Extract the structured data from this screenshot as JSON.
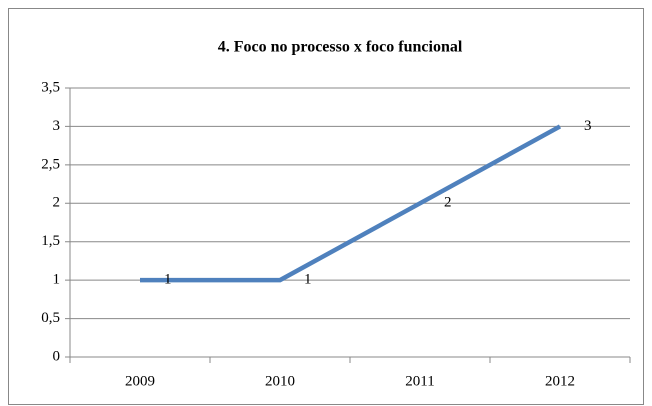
{
  "chart_data": {
    "type": "line",
    "title": "4. Foco no processo x foco funcional",
    "categories": [
      "2009",
      "2010",
      "2011",
      "2012"
    ],
    "values": [
      1,
      1,
      2,
      3
    ],
    "color": "#4f81bd",
    "ylim": [
      0,
      3.5
    ],
    "yticks": [
      0,
      {
        "value": 0.5,
        "label": "0,5"
      },
      1,
      {
        "value": 1.5,
        "label": "1,5"
      },
      2,
      {
        "value": 2.5,
        "label": "2,5"
      },
      3,
      {
        "value": 3.5,
        "label": "3,5"
      }
    ],
    "grid": true
  }
}
